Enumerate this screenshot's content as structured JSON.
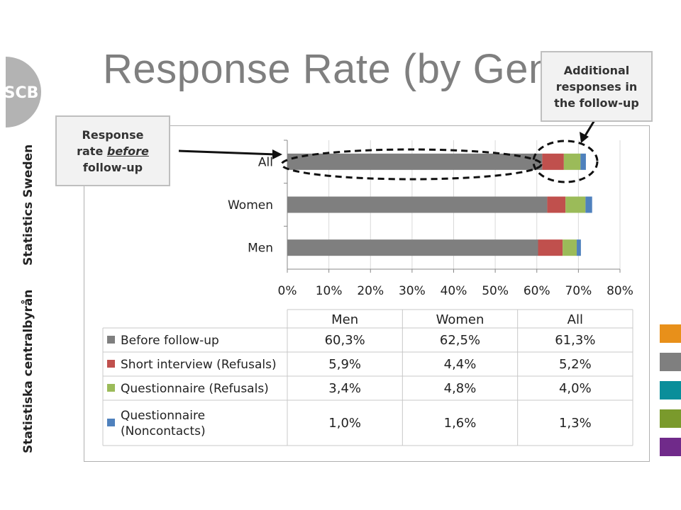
{
  "slide": {
    "title": "Response Rate (by Gender)",
    "logo_text": "SCB",
    "side_label_en": "Statistics Sweden",
    "side_label_sv": "Statistiska centralbyrån"
  },
  "callouts": {
    "before_line1": "Response",
    "before_line2a": "rate ",
    "before_line2b": "before",
    "before_line3": "follow-up",
    "additional_line1": "Additional",
    "additional_line2": "responses in",
    "additional_line3": "the follow-up"
  },
  "colors": {
    "before": "#7f7f7f",
    "short_interview": "#c0504d",
    "questionnaire_refusals": "#9bbb59",
    "questionnaire_noncontacts": "#4f81bd",
    "accent_swatches": [
      "#e8901a",
      "#7f7f7f",
      "#0a8e9a",
      "#7a9a2c",
      "#702a8a"
    ]
  },
  "chart_data": {
    "type": "bar",
    "orientation": "horizontal",
    "stacked": true,
    "categories": [
      "All",
      "Women",
      "Men"
    ],
    "series": [
      {
        "name": "Before follow-up",
        "values": [
          61.3,
          62.5,
          60.3
        ],
        "labels": [
          "61,3%",
          "62,5%",
          "60,3%"
        ]
      },
      {
        "name": "Short interview (Refusals)",
        "values": [
          5.2,
          4.4,
          5.9
        ],
        "labels": [
          "5,2%",
          "4,4%",
          "5,9%"
        ]
      },
      {
        "name": "Questionnaire (Refusals)",
        "values": [
          4.0,
          4.8,
          3.4
        ],
        "labels": [
          "4,0%",
          "4,8%",
          "3,4%"
        ]
      },
      {
        "name": "Questionnaire (Noncontacts)",
        "name_lines": [
          "Questionnaire",
          "(Noncontacts)"
        ],
        "values": [
          1.3,
          1.6,
          1.0
        ],
        "labels": [
          "1,3%",
          "1,6%",
          "1,0%"
        ]
      }
    ],
    "xlim": [
      0,
      80
    ],
    "xticks": [
      "0%",
      "10%",
      "20%",
      "30%",
      "40%",
      "50%",
      "60%",
      "70%",
      "80%"
    ],
    "grid": true,
    "table": {
      "columns": [
        "Men",
        "Women",
        "All"
      ],
      "column_category_index": [
        2,
        1,
        0
      ]
    }
  }
}
